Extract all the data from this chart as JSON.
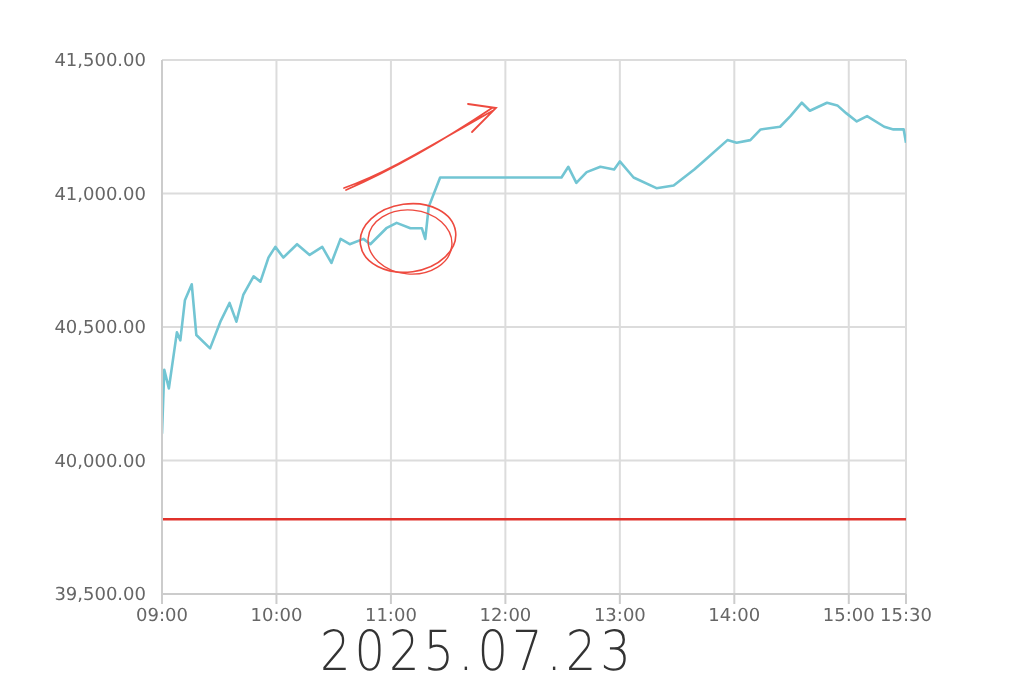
{
  "chart_data": {
    "type": "line",
    "x": [
      9.0,
      9.02,
      9.06,
      9.13,
      9.16,
      9.2,
      9.26,
      9.3,
      9.42,
      9.51,
      9.59,
      9.65,
      9.71,
      9.8,
      9.86,
      9.93,
      9.99,
      10.06,
      10.18,
      10.29,
      10.4,
      10.48,
      10.56,
      10.64,
      10.76,
      10.82,
      10.96,
      11.05,
      11.17,
      11.27,
      11.3,
      11.33,
      11.43,
      12.49,
      12.55,
      12.62,
      12.71,
      12.83,
      12.95,
      13.0,
      13.12,
      13.32,
      13.47,
      13.65,
      13.73,
      13.94,
      14.02,
      14.14,
      14.23,
      14.4,
      14.49,
      14.59,
      14.66,
      14.81,
      14.9,
      14.98,
      15.07,
      15.16,
      15.31,
      15.39,
      15.48,
      15.5
    ],
    "series": [
      {
        "color": "#72c5d3",
        "values": [
          40100,
          40340,
          40270,
          40480,
          40450,
          40600,
          40660,
          40470,
          40420,
          40520,
          40590,
          40520,
          40620,
          40690,
          40670,
          40760,
          40800,
          40760,
          40810,
          40770,
          40800,
          40740,
          40830,
          40810,
          40830,
          40810,
          40870,
          40890,
          40870,
          40870,
          40830,
          40950,
          41060,
          41060,
          41100,
          41040,
          41080,
          41100,
          41090,
          41120,
          41060,
          41020,
          41030,
          41090,
          41120,
          41200,
          41190,
          41200,
          41240,
          41250,
          41290,
          41340,
          41310,
          41340,
          41330,
          41300,
          41270,
          41290,
          41250,
          41240,
          41240,
          41190
        ]
      }
    ],
    "xlim": [
      9,
      15.5
    ],
    "xticks": [
      {
        "value": 9,
        "label": "09:00"
      },
      {
        "value": 10,
        "label": "10:00"
      },
      {
        "value": 11,
        "label": "11:00"
      },
      {
        "value": 12,
        "label": "12:00"
      },
      {
        "value": 13,
        "label": "13:00"
      },
      {
        "value": 14,
        "label": "14:00"
      },
      {
        "value": 15,
        "label": "15:00"
      },
      {
        "value": 15.5,
        "label": "15:30"
      }
    ],
    "ylim": [
      39500,
      41500
    ],
    "yticks": [
      {
        "value": 39500,
        "label": "39,500.00"
      },
      {
        "value": 40000,
        "label": "40,000.00"
      },
      {
        "value": 40500,
        "label": "40,500.00"
      },
      {
        "value": 41000,
        "label": "41,000.00"
      },
      {
        "value": 41500,
        "label": "41,500.00"
      }
    ],
    "ref_lines": [
      {
        "axis": "y",
        "value": 39780,
        "color": "#e0312b"
      }
    ],
    "grid": true,
    "marker": "none",
    "line_style": "solid",
    "annotations": [
      "2025.07.23"
    ]
  }
}
